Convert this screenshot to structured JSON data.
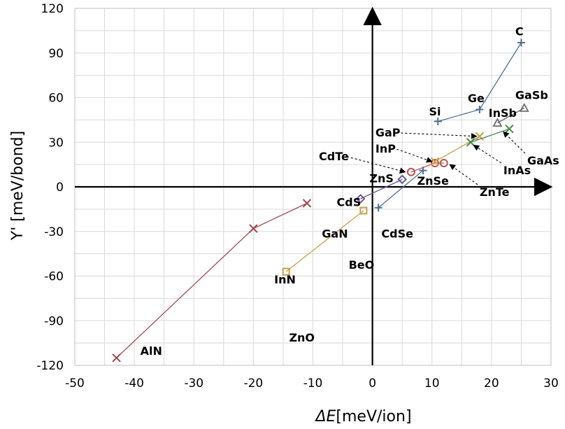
{
  "chart_data": {
    "type": "scatter",
    "xlabel_symbol": "ΔE",
    "xlabel_unit": "[meV/ion]",
    "ylabel": "Υ' [meV/bond]",
    "xlim": [
      -50,
      30
    ],
    "ylim": [
      -120,
      120
    ],
    "x_ticks": [
      -50,
      -40,
      -30,
      -20,
      -10,
      0,
      10,
      20,
      30
    ],
    "y_ticks": [
      -120,
      -90,
      -60,
      -30,
      0,
      30,
      60,
      90,
      120
    ],
    "x_tick_labels": [
      "-50",
      "-40",
      "-30",
      "-20",
      "-10",
      "0",
      "10",
      "20",
      "30"
    ],
    "y_tick_labels": [
      "-120",
      "-90",
      "-60",
      "-30",
      "0",
      "30",
      "60",
      "90",
      "120"
    ],
    "grid": true,
    "series": [
      {
        "color": "#4f6f94",
        "marker": "plus",
        "points": [
          {
            "label": "C",
            "x": 25,
            "y": 97
          },
          {
            "label": "Ge",
            "x": 18,
            "y": 52
          },
          {
            "label": "Si",
            "x": 11,
            "y": 44
          }
        ]
      },
      {
        "color": "#a04a52",
        "marker": "x",
        "points": [
          {
            "label": "AlN",
            "x": -43,
            "y": -115
          },
          {
            "label": "InN",
            "x": -20,
            "y": -28
          },
          {
            "label": "GaN",
            "x": -11,
            "y": -11
          }
        ]
      },
      {
        "color": "#c8a24a",
        "marker": "square",
        "points": [
          {
            "label": "ZnO",
            "x": -14.5,
            "y": -57
          },
          {
            "label": "BeO",
            "x": -1.5,
            "y": -16
          }
        ]
      },
      {
        "color": "#6e5a92",
        "marker": "diamond",
        "points": [
          {
            "label": "CdS",
            "x": -2,
            "y": -8
          },
          {
            "label": "ZnS",
            "x": 5,
            "y": 5
          }
        ]
      },
      {
        "color": "#4f6f94",
        "marker": "plus",
        "points": [
          {
            "label": "CdSe",
            "x": 1,
            "y": -14
          },
          {
            "label": "",
            "x": 8.5,
            "y": 11
          }
        ]
      },
      {
        "color": "#c0504d",
        "marker": "circle",
        "points": [
          {
            "label": "CdTe",
            "x": 6.5,
            "y": 10
          },
          {
            "label": "ZnSe",
            "x": 10.5,
            "y": 16
          },
          {
            "label": "ZnTe",
            "x": 12,
            "y": 16
          }
        ]
      },
      {
        "color": "#c8a24a",
        "marker": "x",
        "points": [
          {
            "label": "InP",
            "x": 10.5,
            "y": 17
          },
          {
            "label": "GaP",
            "x": 18,
            "y": 34
          }
        ]
      },
      {
        "color": "#4a8a4a",
        "marker": "x",
        "points": [
          {
            "label": "InAs",
            "x": 16.5,
            "y": 30
          },
          {
            "label": "GaAs",
            "x": 23,
            "y": 39
          }
        ]
      },
      {
        "color": "#6b6b6b",
        "marker": "triangle",
        "points": [
          {
            "label": "InSb",
            "x": 21,
            "y": 43
          },
          {
            "label": "GaSb",
            "x": 25.5,
            "y": 53
          }
        ]
      }
    ],
    "annotations": [
      {
        "text": "C",
        "x": 24,
        "y": 102,
        "arrow_to": null
      },
      {
        "text": "Ge",
        "x": 16,
        "y": 57,
        "arrow_to": null
      },
      {
        "text": "Si",
        "x": 9.5,
        "y": 48,
        "arrow_to": null
      },
      {
        "text": "GaSb",
        "x": 24,
        "y": 59,
        "arrow_to": null
      },
      {
        "text": "InSb",
        "x": 19.5,
        "y": 47,
        "arrow_to": null
      },
      {
        "text": "GaP",
        "x": 0.5,
        "y": 34,
        "arrow_to": [
          17.5,
          34
        ]
      },
      {
        "text": "InP",
        "x": 0.5,
        "y": 23,
        "arrow_to": [
          10,
          17
        ]
      },
      {
        "text": "CdTe",
        "x": -9,
        "y": 18,
        "arrow_to": [
          5.5,
          10
        ]
      },
      {
        "text": "ZnS",
        "x": -0.5,
        "y": 3,
        "arrow_to": null
      },
      {
        "text": "ZnSe",
        "x": 7.5,
        "y": 1.5,
        "arrow_to": null
      },
      {
        "text": "CdS",
        "x": -6,
        "y": -13,
        "arrow_to": null
      },
      {
        "text": "CdSe",
        "x": 1.5,
        "y": -34,
        "arrow_to": null
      },
      {
        "text": "GaN",
        "x": -8.5,
        "y": -34,
        "arrow_to": null
      },
      {
        "text": "InN",
        "x": -16.5,
        "y": -65,
        "arrow_to": null
      },
      {
        "text": "BeO",
        "x": -4,
        "y": -55,
        "arrow_to": null
      },
      {
        "text": "ZnO",
        "x": -14,
        "y": -104,
        "arrow_to": null
      },
      {
        "text": "AlN",
        "x": -39,
        "y": -113,
        "arrow_to": null
      },
      {
        "text": "GaAs",
        "x": 26,
        "y": 15,
        "arrow_to": [
          22,
          37
        ]
      },
      {
        "text": "InAs",
        "x": 22,
        "y": 8.5,
        "arrow_to": [
          17,
          28
        ]
      },
      {
        "text": "ZnTe",
        "x": 18,
        "y": -6,
        "arrow_to": [
          13,
          15
        ]
      }
    ]
  }
}
